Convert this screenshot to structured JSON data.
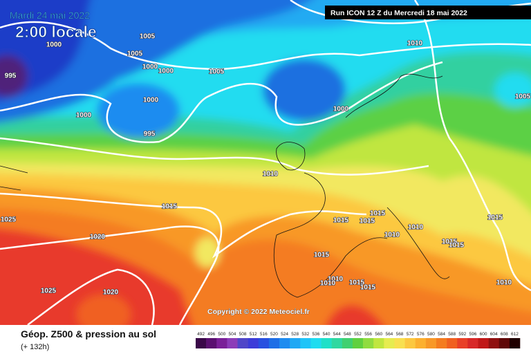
{
  "header": {
    "date": "Mardi 24 mai 2022",
    "time": "2:00 locale",
    "run": "Run ICON 12 Z du Mercredi 18 mai 2022"
  },
  "isobar_labels": [
    "1000",
    "1005",
    "1005",
    "1000",
    "1000",
    "1005",
    "995",
    "1000",
    "1000",
    "995",
    "1000",
    "1010",
    "1005",
    "1010",
    "1015",
    "1025",
    "1020",
    "1015",
    "1015",
    "1015",
    "1010",
    "1010",
    "1015",
    "1015",
    "1015",
    "1015",
    "1010",
    "1010",
    "1015",
    "1015",
    "1010",
    "1025",
    "1020"
  ],
  "copyright": "Copyright © 2022 Meteociel.fr",
  "legend": {
    "title": "Géop. Z500 & pression au sol",
    "subtitle": "(+ 132h)",
    "labels": [
      492,
      496,
      500,
      504,
      508,
      512,
      516,
      520,
      524,
      528,
      532,
      536,
      540,
      544,
      548,
      552,
      556,
      560,
      564,
      568,
      572,
      576,
      580,
      584,
      588,
      592,
      596,
      600,
      604,
      608,
      612
    ],
    "colors": [
      "#3a0848",
      "#5a1070",
      "#7a2098",
      "#8c3cb8",
      "#5046c8",
      "#3c3cd8",
      "#2850e0",
      "#1e6ee6",
      "#1e8cf0",
      "#20a8f4",
      "#20c4f8",
      "#20dcf0",
      "#20e0c8",
      "#30d8a0",
      "#40d070",
      "#60d040",
      "#90dc40",
      "#c0e640",
      "#e6ec50",
      "#f8e050",
      "#fcc840",
      "#fcb030",
      "#f89828",
      "#f47c20",
      "#f06020",
      "#e84028",
      "#d82828",
      "#c01818",
      "#901010",
      "#600808",
      "#200000"
    ]
  }
}
